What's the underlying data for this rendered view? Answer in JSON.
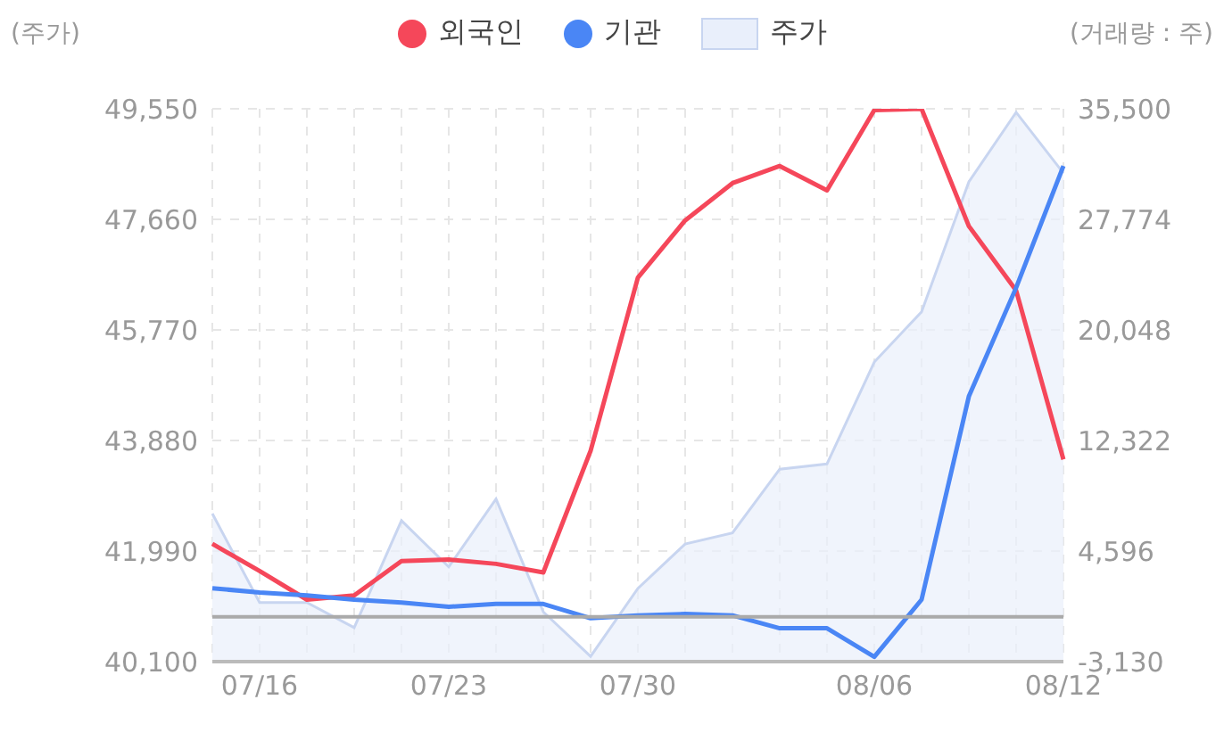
{
  "chart_data": {
    "type": "line",
    "ylabel": "(주가)",
    "y2label": "(거래량 : 주)",
    "categories": [
      null,
      "07/16",
      null,
      null,
      null,
      "07/23",
      null,
      null,
      null,
      "07/30",
      null,
      null,
      null,
      null,
      "08/06",
      null,
      null,
      null,
      "08/12"
    ],
    "series": [
      {
        "name": "외국인",
        "axis": "y2",
        "color": "#f5475a",
        "values": [
          5100,
          3200,
          1200,
          1500,
          3900,
          4000,
          3700,
          3100,
          11600,
          23700,
          27700,
          30300,
          31500,
          29800,
          35400,
          35500,
          27300,
          22800,
          11000
        ]
      },
      {
        "name": "기관",
        "axis": "y2",
        "color": "#4a86f5",
        "values": [
          2000,
          1700,
          1500,
          1200,
          1000,
          700,
          900,
          900,
          -100,
          100,
          200,
          100,
          -800,
          -800,
          -2800,
          1200,
          15400,
          23000,
          31500
        ]
      },
      {
        "name": "주가",
        "type": "area",
        "axis": "y",
        "color": "#c8d5f0",
        "values": [
          42630,
          41110,
          41110,
          40680,
          42510,
          41720,
          42880,
          40950,
          40190,
          41350,
          42110,
          42300,
          43390,
          43480,
          45220,
          46080,
          48300,
          49490,
          48450
        ]
      }
    ],
    "ylim": [
      40100,
      49550
    ],
    "yticks": [
      {
        "value": 40100,
        "label": "40,100"
      },
      {
        "value": 41990,
        "label": "41,990"
      },
      {
        "value": 43880,
        "label": "43,880"
      },
      {
        "value": 45770,
        "label": "45,770"
      },
      {
        "value": 47660,
        "label": "47,660"
      },
      {
        "value": 49550,
        "label": "49,550"
      }
    ],
    "y2lim": [
      -3130,
      35500
    ],
    "y2ticks": [
      {
        "value": -3130,
        "label": "-3,130"
      },
      {
        "value": 4596,
        "label": "4,596"
      },
      {
        "value": 12322,
        "label": "12,322"
      },
      {
        "value": 20048,
        "label": "20,048"
      },
      {
        "value": 27774,
        "label": "27,774"
      },
      {
        "value": 35500,
        "label": "35,500"
      }
    ],
    "ref_lines": [
      {
        "axis": "y2",
        "value": 0,
        "color": "#aaaaaa"
      }
    ],
    "grid": true,
    "legend": "top"
  }
}
